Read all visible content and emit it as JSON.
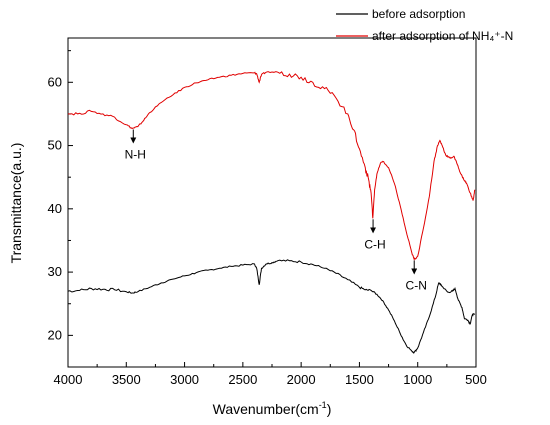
{
  "chart_data": {
    "type": "line",
    "xlabel_main": "Wavenumber(cm",
    "xlabel_sup": "-1",
    "xlabel_end": ")",
    "ylabel": "Transmittance(a.u.)",
    "xlim": [
      4000,
      500
    ],
    "ylim": [
      15,
      67
    ],
    "xticks": [
      4000,
      3500,
      3000,
      2500,
      2000,
      1500,
      1000,
      500
    ],
    "yticks": [
      20,
      30,
      40,
      50,
      60
    ],
    "legend_position": "top-right",
    "grid": false,
    "series": [
      {
        "name": "before adsorption",
        "color": "#000000",
        "points": [
          [
            4000,
            27.0
          ],
          [
            3900,
            27.1
          ],
          [
            3800,
            27.4
          ],
          [
            3700,
            27.3
          ],
          [
            3600,
            27.2
          ],
          [
            3500,
            26.9
          ],
          [
            3450,
            26.7
          ],
          [
            3400,
            26.9
          ],
          [
            3300,
            27.6
          ],
          [
            3200,
            28.3
          ],
          [
            3100,
            28.9
          ],
          [
            3000,
            29.4
          ],
          [
            2900,
            29.9
          ],
          [
            2800,
            30.3
          ],
          [
            2700,
            30.6
          ],
          [
            2600,
            30.9
          ],
          [
            2500,
            31.1
          ],
          [
            2400,
            31.3
          ],
          [
            2380,
            30.5
          ],
          [
            2360,
            28.0
          ],
          [
            2340,
            30.6
          ],
          [
            2300,
            31.3
          ],
          [
            2250,
            31.5
          ],
          [
            2200,
            31.8
          ],
          [
            2100,
            31.8
          ],
          [
            2000,
            31.6
          ],
          [
            1900,
            31.2
          ],
          [
            1800,
            30.6
          ],
          [
            1700,
            29.8
          ],
          [
            1600,
            28.8
          ],
          [
            1500,
            27.6
          ],
          [
            1450,
            27.2
          ],
          [
            1400,
            27.1
          ],
          [
            1350,
            26.5
          ],
          [
            1300,
            25.5
          ],
          [
            1250,
            24.0
          ],
          [
            1200,
            22.3
          ],
          [
            1150,
            20.3
          ],
          [
            1100,
            18.5
          ],
          [
            1050,
            17.5
          ],
          [
            1030,
            17.3
          ],
          [
            1000,
            18.0
          ],
          [
            950,
            20.5
          ],
          [
            900,
            23.0
          ],
          [
            850,
            26.0
          ],
          [
            820,
            28.3
          ],
          [
            800,
            28.0
          ],
          [
            780,
            27.5
          ],
          [
            740,
            26.8
          ],
          [
            700,
            27.0
          ],
          [
            680,
            27.4
          ],
          [
            650,
            25.5
          ],
          [
            620,
            24.4
          ],
          [
            600,
            22.7
          ],
          [
            570,
            22.4
          ],
          [
            550,
            21.8
          ],
          [
            530,
            23.3
          ],
          [
            510,
            23.3
          ]
        ]
      },
      {
        "name": "after adsorption of NH₄⁺-N",
        "color": "#e00000",
        "points": [
          [
            4000,
            55.0
          ],
          [
            3900,
            55.1
          ],
          [
            3800,
            55.4
          ],
          [
            3700,
            55.0
          ],
          [
            3600,
            54.5
          ],
          [
            3500,
            53.3
          ],
          [
            3450,
            52.7
          ],
          [
            3400,
            53.0
          ],
          [
            3350,
            54.0
          ],
          [
            3300,
            55.2
          ],
          [
            3200,
            56.8
          ],
          [
            3100,
            58.0
          ],
          [
            3000,
            59.2
          ],
          [
            2900,
            59.9
          ],
          [
            2800,
            60.4
          ],
          [
            2700,
            60.8
          ],
          [
            2600,
            61.1
          ],
          [
            2500,
            61.4
          ],
          [
            2400,
            61.5
          ],
          [
            2380,
            61.3
          ],
          [
            2360,
            60.0
          ],
          [
            2340,
            61.2
          ],
          [
            2300,
            61.6
          ],
          [
            2200,
            61.6
          ],
          [
            2100,
            61.3
          ],
          [
            2000,
            60.8
          ],
          [
            1900,
            60.0
          ],
          [
            1800,
            59.0
          ],
          [
            1700,
            57.5
          ],
          [
            1600,
            55.0
          ],
          [
            1550,
            52.5
          ],
          [
            1500,
            49.5
          ],
          [
            1450,
            46.5
          ],
          [
            1420,
            44.5
          ],
          [
            1400,
            42.5
          ],
          [
            1385,
            38.5
          ],
          [
            1370,
            43.0
          ],
          [
            1350,
            45.5
          ],
          [
            1320,
            47.2
          ],
          [
            1300,
            47.5
          ],
          [
            1250,
            46.5
          ],
          [
            1200,
            44.0
          ],
          [
            1150,
            40.5
          ],
          [
            1100,
            36.5
          ],
          [
            1050,
            33.0
          ],
          [
            1030,
            32.0
          ],
          [
            1000,
            32.5
          ],
          [
            950,
            37.0
          ],
          [
            900,
            42.0
          ],
          [
            860,
            47.5
          ],
          [
            830,
            50.0
          ],
          [
            810,
            50.8
          ],
          [
            790,
            50.0
          ],
          [
            760,
            48.5
          ],
          [
            720,
            48.0
          ],
          [
            690,
            48.3
          ],
          [
            660,
            47.0
          ],
          [
            630,
            45.5
          ],
          [
            600,
            44.5
          ],
          [
            580,
            44.0
          ],
          [
            550,
            42.5
          ],
          [
            525,
            41.3
          ],
          [
            510,
            43.0
          ]
        ]
      }
    ],
    "annotations": [
      {
        "label": "N-H",
        "x": 3440,
        "y": 52.7
      },
      {
        "label": "C-H",
        "x": 1383,
        "y": 38.5
      },
      {
        "label": "C-N",
        "x": 1030,
        "y": 32.0
      }
    ]
  }
}
